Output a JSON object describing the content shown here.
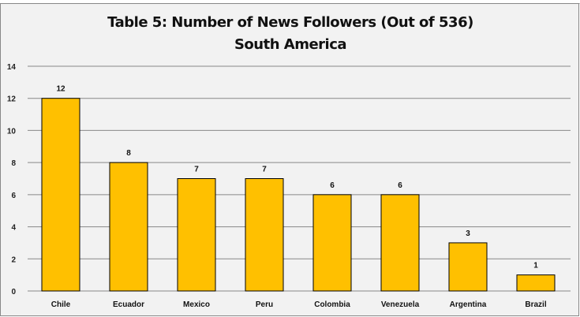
{
  "chart_data": {
    "type": "bar",
    "title": "Table 5: Number of News Followers (Out of 536)",
    "subtitle": "South America",
    "categories": [
      "Chile",
      "Ecuador",
      "Mexico",
      "Peru",
      "Colombia",
      "Venezuela",
      "Argentina",
      "Brazil"
    ],
    "values": [
      12,
      8,
      7,
      7,
      6,
      6,
      3,
      1
    ],
    "ylim": [
      0,
      14
    ],
    "yticks": [
      0,
      2,
      4,
      6,
      8,
      10,
      12,
      14
    ],
    "xlabel": "",
    "ylabel": "",
    "grid": true,
    "data_labels": true,
    "legend": "none",
    "colors": {
      "bar": "#ffc000",
      "bar_border": "#000000",
      "grid": "#888888",
      "background": "#f2f2f2"
    }
  }
}
